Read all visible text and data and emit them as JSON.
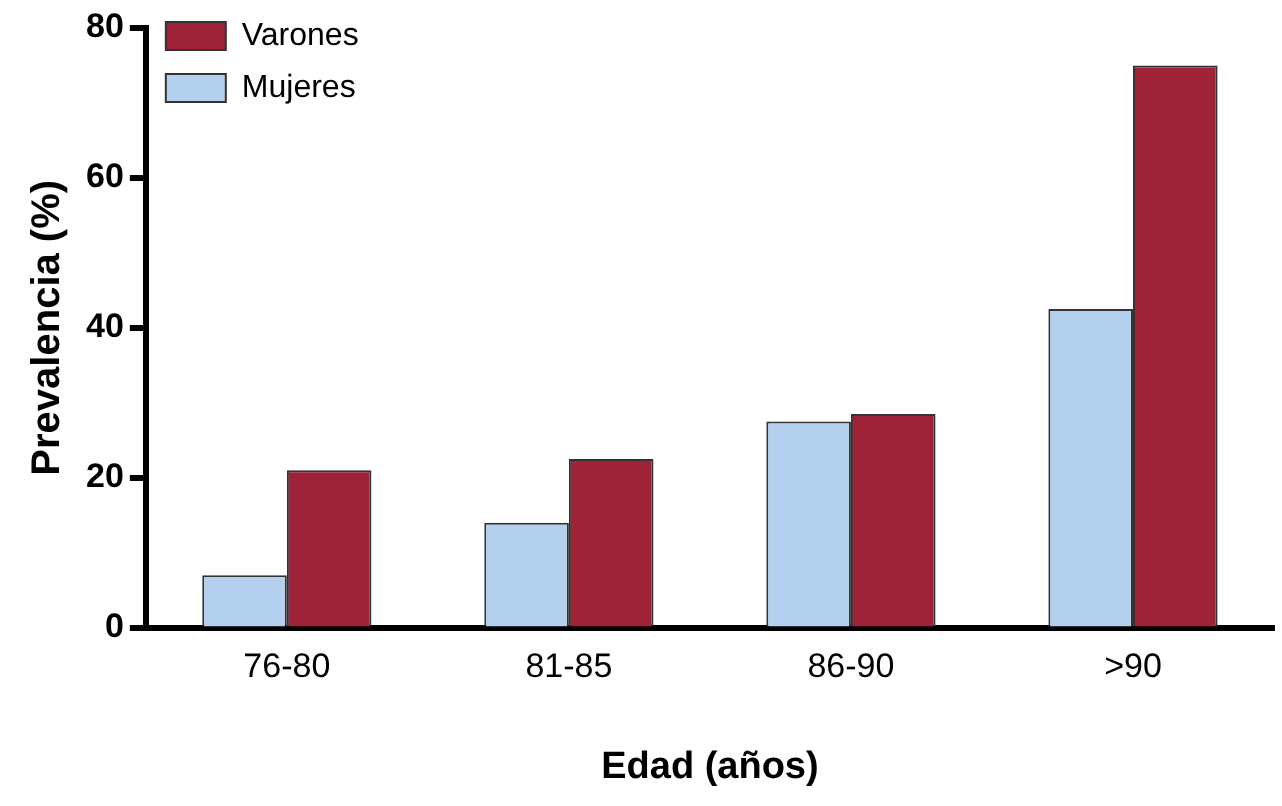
{
  "chart_data": {
    "type": "bar",
    "xlabel": "Edad (años)",
    "ylabel": "Prevalencia (%)",
    "categories": [
      "76-80",
      "81-85",
      "86-90",
      ">90"
    ],
    "series": [
      {
        "name": "Mujeres",
        "color": "#b3d1ee",
        "values": [
          7,
          14,
          27.5,
          42.5
        ]
      },
      {
        "name": "Varones",
        "color": "#9e2339",
        "values": [
          21,
          22.5,
          28.5,
          75
        ]
      }
    ],
    "ylim": [
      0,
      80
    ],
    "yticks": [
      0,
      20,
      40,
      60,
      80
    ],
    "grid": false,
    "legend": "top left"
  }
}
